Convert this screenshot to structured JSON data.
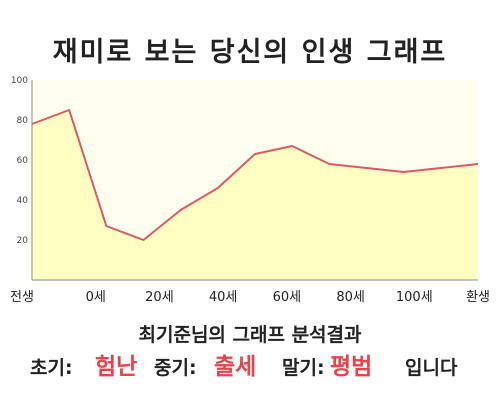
{
  "title": "재미로 보는 당신의 인생 그래프",
  "chart_data": {
    "type": "area",
    "x": [
      -10,
      0,
      10,
      20,
      30,
      40,
      50,
      60,
      70,
      80,
      90,
      100,
      110
    ],
    "values": [
      78,
      85,
      27,
      20,
      35,
      46,
      63,
      67,
      58,
      56,
      54,
      56,
      58
    ],
    "ylim": [
      0,
      100
    ],
    "yticks": [
      20,
      40,
      60,
      80,
      100
    ],
    "xtick_labels": [
      "전생",
      "0세",
      "20세",
      "40세",
      "60세",
      "80세",
      "100세",
      "환생"
    ],
    "grid": false,
    "line_color": "#de5a63",
    "fill_color": "#ffffc4",
    "plot_background": "#fffff0"
  },
  "result": {
    "title": "최기준님의 그래프 분석결과",
    "early_label": "초기:",
    "early_value": "험난",
    "middle_label": "중기:",
    "middle_value": "출세",
    "late_label": "말기:",
    "late_value": "평범",
    "ending": "입니다"
  }
}
